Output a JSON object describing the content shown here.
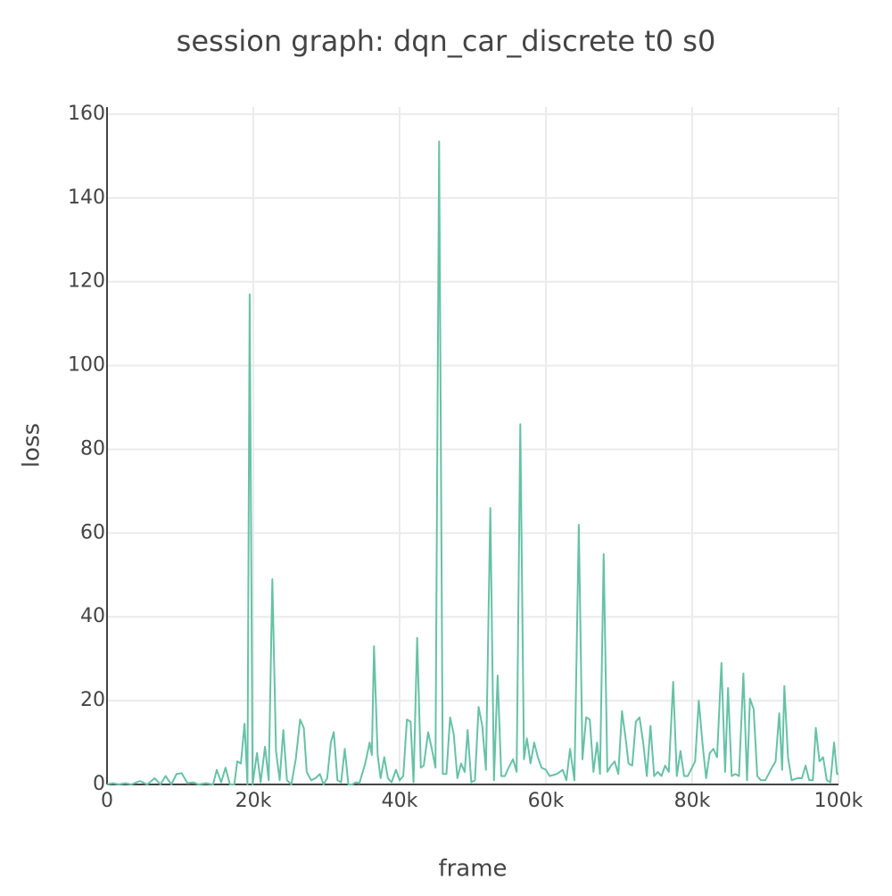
{
  "chart_data": {
    "type": "line",
    "title": "session graph: dqn_car_discrete t0 s0",
    "x_label": "frame",
    "y_label": "loss",
    "color": "#66c2a5",
    "grid": true,
    "xlim": [
      0,
      100000
    ],
    "ylim": [
      0,
      161.7
    ],
    "xticks": [
      0,
      {
        "value": 20000,
        "label": "20k"
      },
      {
        "value": 40000,
        "label": "40k"
      },
      {
        "value": 60000,
        "label": "60k"
      },
      {
        "value": 80000,
        "label": "80k"
      },
      {
        "value": 100000,
        "label": "100k"
      }
    ],
    "yticks": [
      0,
      20,
      40,
      60,
      80,
      100,
      120,
      140,
      160
    ],
    "x": [
      0,
      800,
      1600,
      2500,
      3300,
      4500,
      5500,
      6500,
      7300,
      8000,
      8800,
      9500,
      10200,
      11000,
      11800,
      12500,
      13500,
      14500,
      15000,
      15600,
      16200,
      16800,
      17400,
      17800,
      18300,
      18800,
      19200,
      19500,
      19900,
      20500,
      21000,
      21600,
      22100,
      22600,
      23100,
      23600,
      24100,
      24600,
      25200,
      25800,
      26400,
      26900,
      27300,
      27900,
      28500,
      29100,
      29600,
      30100,
      30600,
      31000,
      31500,
      32000,
      32500,
      33000,
      33500,
      34000,
      34500,
      35300,
      35900,
      36200,
      36500,
      37000,
      37400,
      37900,
      38400,
      38900,
      39500,
      40000,
      40500,
      41000,
      41500,
      41900,
      42400,
      42900,
      43300,
      43900,
      44400,
      44900,
      45400,
      45900,
      46400,
      46900,
      47400,
      47900,
      48400,
      48900,
      49300,
      49800,
      50300,
      50800,
      51300,
      51800,
      52400,
      52900,
      53400,
      53900,
      54400,
      54900,
      55500,
      56000,
      56500,
      57000,
      57400,
      57900,
      58400,
      58900,
      59400,
      60000,
      60500,
      61500,
      62300,
      62800,
      63300,
      63900,
      64500,
      65000,
      65500,
      66000,
      66500,
      67000,
      67400,
      67900,
      68400,
      68900,
      69400,
      69900,
      70400,
      70900,
      71300,
      71800,
      72300,
      72800,
      73300,
      73800,
      74300,
      74800,
      75300,
      75800,
      76300,
      76800,
      77400,
      77900,
      78400,
      78900,
      79400,
      80400,
      80900,
      81400,
      81900,
      82400,
      82900,
      83400,
      84000,
      84500,
      84900,
      85400,
      85900,
      86400,
      87000,
      87500,
      87900,
      88400,
      88900,
      89400,
      90000,
      90900,
      91400,
      91900,
      92300,
      92600,
      93100,
      93600,
      94400,
      95000,
      95500,
      96000,
      96500,
      96900,
      97400,
      97900,
      98400,
      98900,
      99400,
      99800,
      100000
    ],
    "values": [
      0,
      0.3,
      0,
      0.3,
      0,
      0.8,
      0,
      1.5,
      0,
      2,
      0,
      2.5,
      2.7,
      0.3,
      0.5,
      0,
      0.3,
      0,
      3.5,
      0.5,
      4,
      0,
      0,
      5.5,
      5,
      14.5,
      0,
      117,
      0,
      7.5,
      0.5,
      9,
      1,
      49,
      8,
      1,
      13,
      1,
      0,
      6,
      15.5,
      13.5,
      3,
      1,
      1.5,
      2.5,
      0,
      1.5,
      10,
      12.5,
      1,
      0.5,
      8.5,
      0,
      0,
      0.5,
      0.3,
      5,
      10,
      7,
      33,
      7,
      1.5,
      6.5,
      1.5,
      0.5,
      3.5,
      1,
      2,
      15.5,
      15,
      0.5,
      35,
      4,
      4.5,
      12.5,
      8.5,
      4,
      153.5,
      2.5,
      2.5,
      16,
      12,
      1.5,
      5,
      3,
      13,
      0.5,
      1,
      18.5,
      14,
      3.5,
      66,
      1,
      26,
      2,
      2,
      4,
      6,
      3,
      86,
      6,
      11,
      5,
      10,
      6.5,
      4,
      3.5,
      2,
      2.5,
      3.5,
      1,
      8.5,
      1,
      62,
      6,
      16,
      15.5,
      3,
      10,
      2.5,
      55,
      3,
      4.5,
      5.5,
      2.5,
      17.5,
      11,
      5,
      4.5,
      15,
      16,
      10,
      2,
      14,
      2,
      3,
      2,
      4.5,
      3,
      24.5,
      2,
      8,
      2,
      2,
      5.5,
      20,
      10,
      1.5,
      7.5,
      8.5,
      6.5,
      29,
      3,
      23,
      2,
      2.5,
      2,
      26.5,
      1,
      20.5,
      18,
      2,
      1,
      1,
      4,
      5.5,
      17,
      3.5,
      23.5,
      6.5,
      1,
      1.5,
      1.5,
      4.5,
      1,
      1,
      13.5,
      5.5,
      6.5,
      1,
      0.5,
      10,
      2.5,
      2.5
    ]
  }
}
